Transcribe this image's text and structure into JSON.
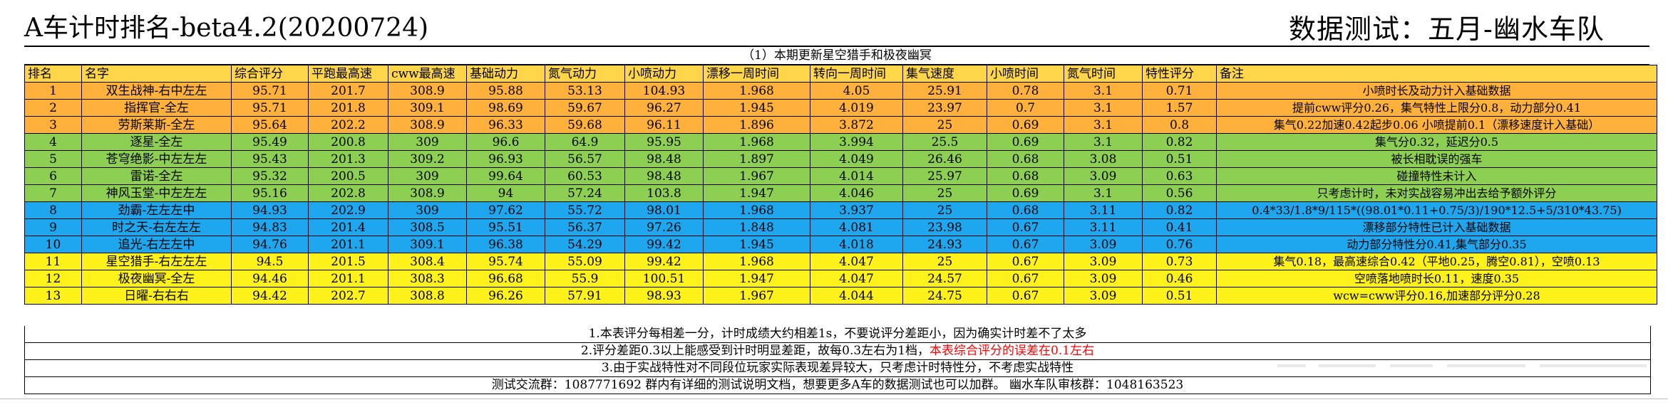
{
  "title": "A车计时排名-beta4.2(20200724)",
  "tester": "数据测试：五月-幽水车队",
  "subtitle": "（1）本期更新星空猎手和极夜幽冥",
  "headers": [
    "排名",
    "名字",
    "综合评分",
    "平跑最高速",
    "cww最高速",
    "基础动力",
    "氮气动力",
    "小喷动力",
    "漂移一周时间",
    "转向一周时间",
    "集气速度",
    "小喷时间",
    "氮气时间",
    "特性评分",
    "备注"
  ],
  "colors": {
    "orange": "#ffb13b",
    "green": "#8ccf52",
    "blue": "#1ea7ef",
    "yellow": "#fff21a",
    "header": "#ffd54a",
    "warn": "#ff0000"
  },
  "rows": [
    {
      "group": "orange",
      "cells": [
        "1",
        "双生战神-右中左左",
        "95.71",
        "201.7",
        "308.9",
        "95.88",
        "53.13",
        "104.93",
        "1.968",
        "4.05",
        "25.91",
        "0.78",
        "3.1",
        "0.71",
        "小喷时长及动力计入基础数据"
      ]
    },
    {
      "group": "orange",
      "cells": [
        "2",
        "指挥官-全左",
        "95.71",
        "201.8",
        "309.1",
        "98.69",
        "59.67",
        "96.27",
        "1.945",
        "4.019",
        "23.97",
        "0.7",
        "3.1",
        "1.57",
        "提前cww评分0.26，集气特性上限分0.8，动力部分0.41"
      ]
    },
    {
      "group": "orange",
      "cells": [
        "3",
        "劳斯莱斯-全左",
        "95.64",
        "202.2",
        "308.9",
        "96.33",
        "59.68",
        "96.11",
        "1.896",
        "3.872",
        "25",
        "0.69",
        "3.1",
        "0.8",
        "集气0.22加速0.42起步0.06 小喷提前0.1（漂移速度计入基础）"
      ]
    },
    {
      "group": "green",
      "cells": [
        "4",
        "逐星-全左",
        "95.49",
        "200.8",
        "309",
        "96.6",
        "64.9",
        "95.95",
        "1.968",
        "3.994",
        "25.5",
        "0.69",
        "3.1",
        "0.82",
        "集气分0.32，延迟分0.5"
      ]
    },
    {
      "group": "green",
      "cells": [
        "5",
        "苍穹绝影-中左左左",
        "95.43",
        "201.3",
        "309.2",
        "96.93",
        "56.57",
        "98.48",
        "1.897",
        "4.049",
        "26.46",
        "0.68",
        "3.08",
        "0.51",
        "被长相耽误的强车"
      ]
    },
    {
      "group": "green",
      "cells": [
        "6",
        "雷诺-全左",
        "95.32",
        "200.5",
        "309",
        "99.64",
        "60.53",
        "98.48",
        "1.967",
        "4.014",
        "25.97",
        "0.68",
        "3.09",
        "0.63",
        "碰撞特性未计入"
      ]
    },
    {
      "group": "green",
      "cells": [
        "7",
        "神风玉堂-中左左左",
        "95.16",
        "202.8",
        "308.9",
        "94",
        "57.24",
        "103.8",
        "1.947",
        "4.046",
        "25",
        "0.69",
        "3.1",
        "0.56",
        "只考虑计时，未对实战容易冲出去给予额外评分"
      ]
    },
    {
      "group": "blue",
      "cells": [
        "8",
        "劲霸-左左左中",
        "94.93",
        "202.9",
        "309",
        "97.62",
        "55.72",
        "98.01",
        "1.968",
        "3.937",
        "25",
        "0.68",
        "3.11",
        "0.82",
        "0.4*33/1.8*9/115*((98.01*0.11+0.75/3)/190*12.5+5/310*43.75)"
      ]
    },
    {
      "group": "blue",
      "cells": [
        "9",
        "时之天-右左左左",
        "94.83",
        "201.4",
        "308.5",
        "95.51",
        "56.37",
        "97.26",
        "1.848",
        "4.081",
        "23.98",
        "0.67",
        "3.11",
        "0.41",
        "漂移部分特性已计入基础数据"
      ]
    },
    {
      "group": "blue",
      "cells": [
        "10",
        "追光-右左左中",
        "94.76",
        "201.1",
        "309.1",
        "96.38",
        "54.29",
        "99.42",
        "1.945",
        "4.018",
        "24.93",
        "0.67",
        "3.09",
        "0.76",
        "动力部分特性分0.41,集气部分0.35"
      ]
    },
    {
      "group": "yellow",
      "cells": [
        "11",
        "星空猎手-右左左左",
        "94.5",
        "201.5",
        "308.4",
        "95.74",
        "55.09",
        "99.42",
        "1.968",
        "4.047",
        "25",
        "0.67",
        "3.09",
        "0.73",
        "集气0.18，最高速综合0.42（平地0.25，腾空0.81），空喷0.13"
      ]
    },
    {
      "group": "yellow",
      "cells": [
        "12",
        "极夜幽冥-全左",
        "94.46",
        "201.1",
        "308.3",
        "96.68",
        "55.9",
        "100.51",
        "1.947",
        "4.047",
        "24.57",
        "0.67",
        "3.09",
        "0.46",
        "空喷落地喷时长0.11，速度0.35"
      ]
    },
    {
      "group": "yellow",
      "cells": [
        "13",
        "日曜-右右右",
        "94.42",
        "202.7",
        "308.8",
        "96.26",
        "57.91",
        "98.93",
        "1.967",
        "4.044",
        "24.75",
        "0.67",
        "3.09",
        "0.51",
        "wcw=cww评分0.16,加速部分评分0.28"
      ]
    }
  ],
  "notes": {
    "n1": "1.本表评分每相差一分，计时成绩大约相差1s，不要说评分差距小，因为确实计时差不了太多",
    "n2_prefix": "2.评分差距0.3以上能感受到计时明显差距，故每0.3左右为1档，",
    "n2_warn": "本表综合评分的误差在0.1左右",
    "n3": "3.由于实战特性对不同段位玩家实际表现差异较大，只考虑计时特性分，不考虑实战特性",
    "group_info": "测试交流群：1087771692 群内有详细的测试说明文档，想要更多A车的数据测试也可以加群。 幽水车队审核群：1048163523"
  }
}
